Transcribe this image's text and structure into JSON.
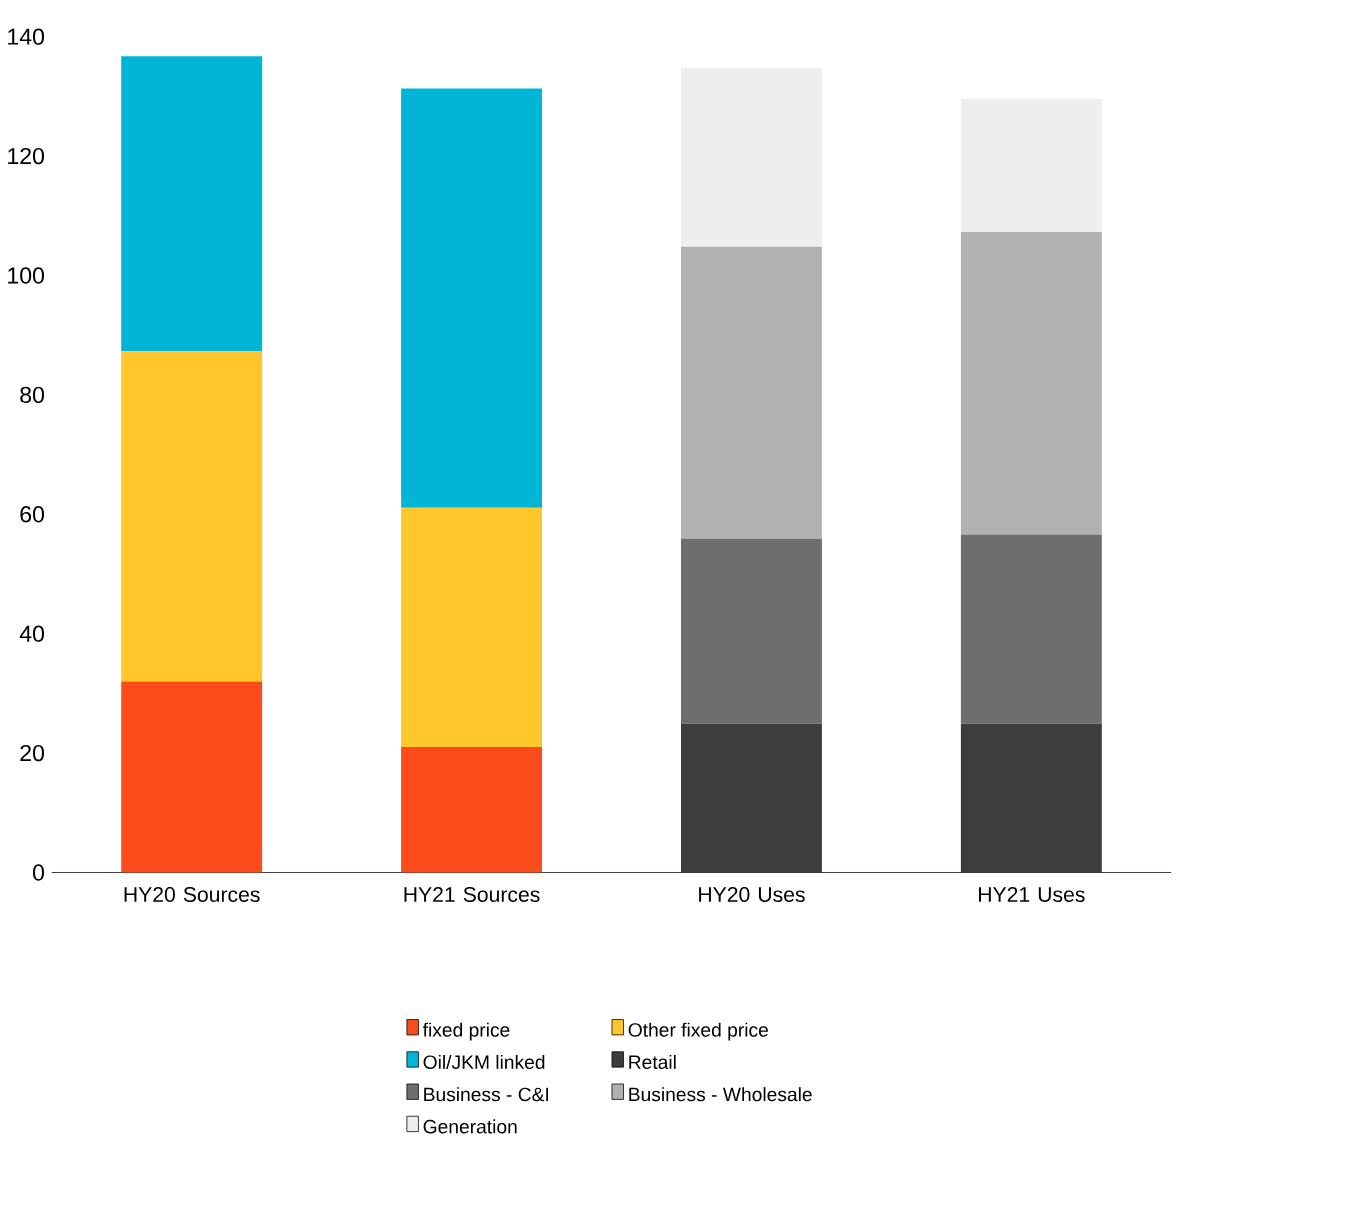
{
  "chart_data": {
    "type": "bar",
    "stacked": true,
    "categories": [
      "HY20 Sources",
      "HY21 Sources",
      "HY20 Uses",
      "HY21 Uses"
    ],
    "series": [
      {
        "name": "fixed price",
        "color": "#fc4c1c",
        "values": [
          32.0,
          21.0,
          null,
          null
        ]
      },
      {
        "name": "Other fixed price",
        "color": "#ffc72c",
        "values": [
          55.3,
          40.1,
          null,
          null
        ]
      },
      {
        "name": "Oil/JKM linked",
        "color": "#00b5d6",
        "values": [
          49.4,
          70.2,
          null,
          null
        ]
      },
      {
        "name": "Retail",
        "color": "#3d3d3d",
        "values": [
          null,
          null,
          24.9,
          24.9
        ]
      },
      {
        "name": "Business - C&I",
        "color": "#6e6e6e",
        "values": [
          null,
          null,
          31.0,
          31.7
        ]
      },
      {
        "name": "Business - Wholesale",
        "color": "#b1b1b1",
        "values": [
          null,
          null,
          48.9,
          50.7
        ]
      },
      {
        "name": "Generation",
        "color": "#efeeec",
        "values": [
          null,
          null,
          30.0,
          22.3
        ]
      }
    ],
    "ylim": [
      0,
      140
    ],
    "yticks": [
      0,
      20,
      40,
      60,
      80,
      100,
      120,
      140
    ],
    "grid": false,
    "legend": "bottom"
  }
}
